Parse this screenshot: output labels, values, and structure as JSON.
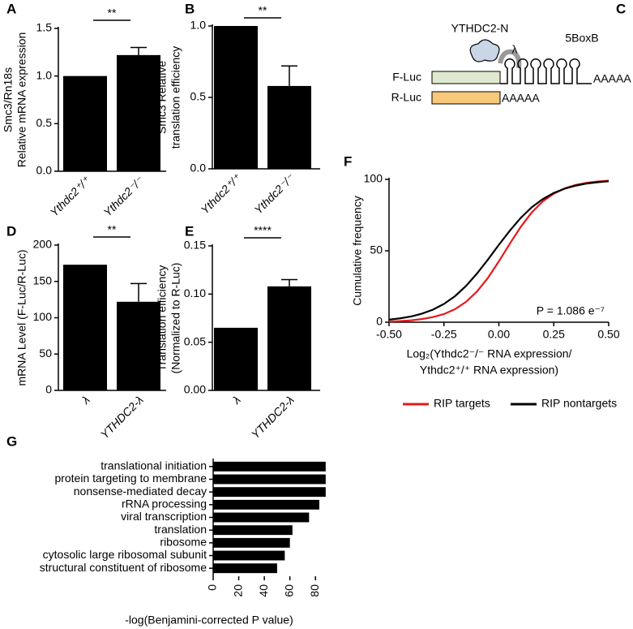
{
  "chart_data": [
    {
      "panel": "A",
      "type": "bar",
      "ylabel": [
        "Smc3/Rn18s",
        "Relative mRNA expression"
      ],
      "categories": [
        "Ythdc2⁺/⁺",
        "Ythdc2⁻/⁻"
      ],
      "values": [
        1.0,
        1.22
      ],
      "errors": [
        null,
        0.08
      ],
      "color": "#000000",
      "ylim": [
        0,
        1.5
      ],
      "yticks": [
        {
          "value": 0,
          "label": "0.0"
        },
        {
          "value": 0.5,
          "label": "0.5"
        },
        {
          "value": 1,
          "label": "1.0"
        },
        {
          "value": 1.5,
          "label": "1.5"
        }
      ],
      "significance": "**"
    },
    {
      "panel": "B",
      "type": "bar",
      "ylabel": [
        "Smc3 Relative",
        "translation efficiency"
      ],
      "categories": [
        "Ythdc2⁺/⁺",
        "Ythdc2⁻/⁻"
      ],
      "values": [
        1.0,
        0.58
      ],
      "errors": [
        null,
        0.14
      ],
      "color": "#000000",
      "ylim": [
        0,
        1.0
      ],
      "yticks": [
        {
          "value": 0,
          "label": "0.0"
        },
        {
          "value": 0.5,
          "label": "0.5"
        },
        {
          "value": 1,
          "label": "1.0"
        }
      ],
      "significance": "**"
    },
    {
      "panel": "D",
      "type": "bar",
      "ylabel": [
        "mRNA Level (F-Luc/R-Luc)"
      ],
      "categories": [
        "λ",
        "YTHDC2-λ"
      ],
      "values": [
        173,
        122
      ],
      "errors": [
        null,
        25
      ],
      "color": "#000000",
      "ylim": [
        0,
        200
      ],
      "yticks": [
        0,
        50,
        100,
        150,
        200
      ],
      "significance": "**"
    },
    {
      "panel": "E",
      "type": "bar",
      "ylabel": [
        "Translation efficiency",
        "(Normalized to R-Luc)"
      ],
      "categories": [
        "λ",
        "YTHDC2-λ"
      ],
      "values": [
        0.065,
        0.108
      ],
      "errors": [
        null,
        0.007
      ],
      "color": "#000000",
      "ylim": [
        0,
        0.15
      ],
      "yticks": [
        {
          "value": 0,
          "label": "0.00"
        },
        {
          "value": 0.05,
          "label": "0.05"
        },
        {
          "value": 0.1,
          "label": "0.10"
        },
        {
          "value": 0.15,
          "label": "0.15"
        }
      ],
      "significance": "****"
    },
    {
      "panel": "F",
      "type": "line",
      "ylabel": "Cumulative frequency",
      "xlabel": [
        "Log₂(Ythdc2⁻/⁻ RNA expression/",
        "Ythdc2⁺/⁺ RNA expression)"
      ],
      "annotation": "P = 1.086 e⁻⁷",
      "x": [
        -0.5,
        -0.45,
        -0.4,
        -0.35,
        -0.3,
        -0.25,
        -0.2,
        -0.15,
        -0.1,
        -0.05,
        0,
        0.05,
        0.1,
        0.15,
        0.2,
        0.25,
        0.3,
        0.35,
        0.4,
        0.45,
        0.5
      ],
      "series": [
        {
          "name": "RIP targets",
          "color": "#e41a1c",
          "values": [
            0.5,
            0.8,
            1.3,
            2.2,
            3.6,
            5.7,
            9.1,
            14.2,
            21.4,
            31.0,
            42.6,
            55.0,
            66.8,
            76.9,
            84.6,
            90.0,
            93.7,
            96.1,
            97.6,
            98.5,
            99.1
          ]
        },
        {
          "name": "RIP nontargets",
          "color": "#000000",
          "values": [
            1.8,
            2.7,
            4.0,
            6.0,
            8.8,
            12.8,
            18.2,
            25.3,
            34.0,
            43.8,
            54.2,
            64.1,
            73.1,
            80.5,
            86.2,
            90.5,
            93.5,
            95.6,
            97.1,
            98.0,
            98.7
          ]
        }
      ],
      "xlim": [
        -0.5,
        0.5
      ],
      "xticks": [
        {
          "value": -0.5,
          "label": "-0.50"
        },
        {
          "value": -0.25,
          "label": "-0.25"
        },
        {
          "value": 0,
          "label": "0.00"
        },
        {
          "value": 0.25,
          "label": "0.25"
        },
        {
          "value": 0.5,
          "label": "0.50"
        }
      ],
      "ylim": [
        0,
        100
      ],
      "yticks": [
        0,
        50,
        100
      ]
    },
    {
      "panel": "G",
      "type": "hbar",
      "xlabel": "-log(Benjamini-corrected P value)",
      "categories": [
        "translational initiation",
        "protein targeting to membrane",
        "nonsense-mediated decay",
        "rRNA processing",
        "viral transcription",
        "translation",
        "ribosome",
        "cytosolic large ribosomal subunit",
        "structural constituent of ribosome"
      ],
      "values": [
        88,
        88,
        88,
        83,
        75,
        62,
        60,
        56,
        50
      ],
      "color": "#000000",
      "xlim": [
        0,
        90
      ],
      "xticks": [
        0,
        20,
        40,
        60,
        80
      ]
    }
  ],
  "diagram": {
    "panel": "C",
    "protein": "YTHDC2-N",
    "linker": "λ",
    "hairpins": "5BoxB",
    "reporter1": "F-Luc",
    "reporter2": "R-Luc",
    "tail1": "AAAAA",
    "tail2": "AAAAA"
  }
}
